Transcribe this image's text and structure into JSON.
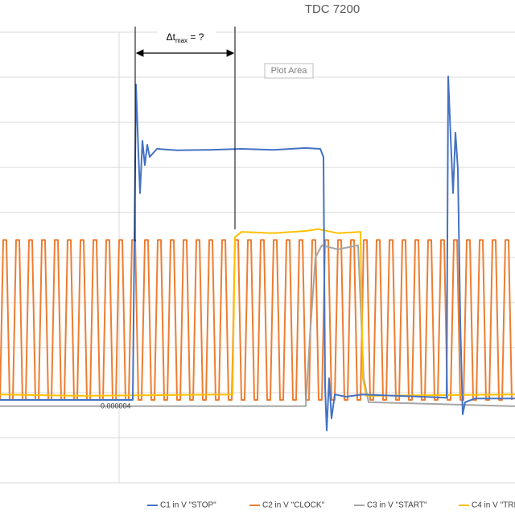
{
  "chart_data": {
    "type": "line",
    "title": "TDC 7200",
    "annotation": [
      "Δt",
      "max",
      " = ?"
    ],
    "tooltip": "Plot Area",
    "axis_label": "0.000004",
    "xlim": [
      0,
      640
    ],
    "ylim": [
      -2,
      8
    ],
    "ygrid": [
      -2,
      -1,
      0,
      1,
      2,
      3,
      4,
      5,
      6,
      7,
      8
    ],
    "series": [
      {
        "name": "C1 in V \"STOP\"",
        "color": "#4472c4",
        "x": [
          0,
          165,
          167,
          169,
          172,
          174,
          177,
          180,
          183,
          186,
          195,
          220,
          260,
          300,
          340,
          380,
          398,
          402,
          404,
          406,
          409,
          412,
          416,
          430,
          450,
          555,
          557,
          560,
          563,
          566,
          569,
          572,
          575,
          578,
          590,
          640
        ],
        "values": [
          -0.16,
          -0.16,
          3.36,
          6.84,
          5.32,
          4.43,
          5.59,
          5.05,
          5.5,
          5.23,
          5.41,
          5.38,
          5.39,
          5.41,
          5.39,
          5.43,
          5.41,
          5.23,
          0.14,
          -0.84,
          0.32,
          -0.57,
          -0.04,
          -0.09,
          -0.04,
          -0.11,
          7.02,
          5.68,
          4.43,
          5.77,
          4.96,
          1.57,
          -0.48,
          -0.21,
          -0.13,
          -0.13
        ]
      },
      {
        "name": "C2 in V \"CLOCK\"",
        "color": "#ed7d31",
        "x": [
          0,
          4,
          8,
          12,
          16,
          20,
          24,
          28,
          32,
          36,
          40,
          44,
          48,
          52,
          56,
          60,
          64,
          68,
          72,
          76,
          80,
          84,
          88,
          92,
          96,
          100,
          104,
          108,
          112,
          116,
          120,
          124,
          128,
          132,
          136,
          140,
          144,
          148,
          152,
          156,
          160,
          164,
          168,
          172,
          176,
          180,
          184,
          188,
          192,
          196,
          200,
          204,
          208,
          212,
          216,
          220,
          224,
          228,
          232,
          236,
          240,
          244,
          248,
          252,
          256,
          260,
          264,
          268,
          272,
          276,
          280,
          284,
          288,
          292,
          296,
          300,
          304,
          308,
          312,
          316,
          320,
          324,
          328,
          332,
          336,
          340,
          344,
          348,
          352,
          356,
          360,
          364,
          368,
          372,
          376,
          380,
          384,
          388,
          392,
          396,
          400,
          404,
          408,
          412,
          416,
          420,
          424,
          428,
          432,
          436,
          440,
          444,
          448,
          452,
          456,
          460,
          464,
          468,
          472,
          476,
          480,
          484,
          488,
          492,
          496,
          500,
          504,
          508,
          512,
          516,
          520,
          524,
          528,
          532,
          536,
          540,
          544,
          548,
          552,
          556,
          560,
          564,
          568,
          572,
          576,
          580,
          584,
          588,
          592,
          596,
          600,
          604,
          608,
          612,
          616,
          620,
          624,
          628,
          632,
          636
        ],
        "values": [
          -0.16,
          3.39,
          3.39,
          -0.16,
          -0.16,
          3.39,
          3.39,
          -0.16,
          -0.16,
          3.39,
          3.39,
          -0.16,
          -0.16,
          3.39,
          3.39,
          -0.16,
          -0.16,
          3.39,
          3.39,
          -0.16,
          -0.16,
          3.39,
          3.39,
          -0.16,
          -0.16,
          3.39,
          3.39,
          -0.16,
          -0.16,
          3.39,
          3.39,
          -0.16,
          -0.16,
          3.39,
          3.39,
          -0.16,
          -0.16,
          3.39,
          3.39,
          -0.16,
          -0.16,
          3.39,
          3.39,
          -0.16,
          -0.16,
          3.39,
          3.39,
          -0.16,
          -0.16,
          3.39,
          3.39,
          -0.16,
          -0.16,
          3.39,
          3.39,
          -0.16,
          -0.16,
          3.39,
          3.39,
          -0.16,
          -0.16,
          3.39,
          3.39,
          -0.16,
          -0.16,
          3.39,
          3.39,
          -0.16,
          -0.16,
          3.39,
          3.39,
          -0.16,
          -0.16,
          3.39,
          3.39,
          -0.16,
          -0.16,
          3.39,
          3.39,
          -0.16,
          -0.16,
          3.39,
          3.39,
          -0.16,
          -0.16,
          3.39,
          3.39,
          -0.16,
          -0.16,
          3.39,
          3.39,
          -0.16,
          -0.16,
          3.39,
          3.39,
          -0.16,
          -0.16,
          3.39,
          3.39,
          -0.16,
          -0.16,
          3.39,
          3.39,
          -0.16,
          -0.16,
          3.39,
          3.39,
          -0.16,
          -0.16,
          3.39,
          3.39,
          -0.16,
          -0.16,
          3.39,
          3.39,
          -0.16,
          -0.16,
          3.39,
          3.39,
          -0.16,
          -0.16,
          3.39,
          3.39,
          -0.16,
          -0.16,
          3.39,
          3.39,
          -0.16,
          -0.16,
          3.39,
          3.39,
          -0.16,
          -0.16,
          3.39,
          3.39,
          -0.16,
          -0.16,
          3.39,
          3.39,
          -0.16,
          -0.16,
          3.39,
          3.39,
          -0.16,
          -0.16,
          3.39,
          3.39,
          -0.16,
          -0.16,
          3.39,
          3.39,
          -0.16,
          -0.16,
          3.39,
          3.39,
          -0.16,
          -0.16,
          3.39,
          3.39,
          -0.16
        ]
      },
      {
        "name": "C3 in V \"START\"",
        "color": "#a5a5a5",
        "x": [
          0,
          380,
          385,
          392,
          400,
          420,
          445,
          452,
          458,
          640
        ],
        "values": [
          -0.3,
          -0.3,
          1.21,
          3.0,
          3.27,
          3.18,
          3.27,
          0.32,
          -0.21,
          -0.3
        ]
      },
      {
        "name": "C4 in V \"TRI",
        "color": "#ffc000",
        "x": [
          0,
          100,
          289,
          292,
          300,
          340,
          380,
          395,
          420,
          448,
          451,
          455,
          640
        ],
        "values": [
          -0.04,
          -0.07,
          -0.04,
          3.45,
          3.57,
          3.54,
          3.59,
          3.63,
          3.54,
          3.57,
          0.32,
          -0.07,
          -0.04
        ]
      }
    ]
  }
}
